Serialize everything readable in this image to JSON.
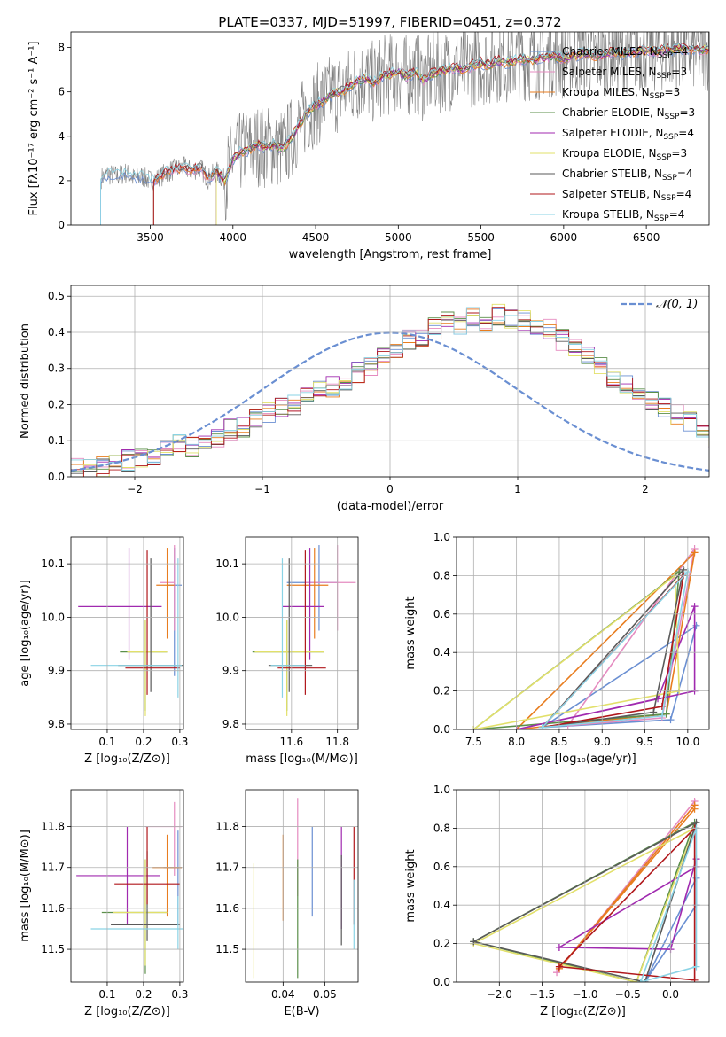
{
  "figure": {
    "title": "PLATE=0337, MJD=51997, FIBERID=0451, z=0.372"
  },
  "colors": {
    "series": [
      "#6a8fd2",
      "#e58bc0",
      "#e87d1f",
      "#5b8f4a",
      "#a02aaf",
      "#e2e06a",
      "#5a5a5a",
      "#b0171b",
      "#8ad3e5"
    ],
    "data": "#808080",
    "normal": "#6a8fd2",
    "grid": "#b0b0b0"
  },
  "series_names": [
    "Chabrier MILES, N_SSP=4",
    "Salpeter MILES, N_SSP=3",
    "Kroupa MILES, N_SSP=3",
    "Chabrier ELODIE, N_SSP=3",
    "Salpeter ELODIE, N_SSP=4",
    "Kroupa ELODIE, N_SSP=3",
    "Chabrier STELIB, N_SSP=4",
    "Salpeter STELIB, N_SSP=4",
    "Kroupa STELIB, N_SSP=4"
  ],
  "chart_data": [
    {
      "id": "spectrum",
      "type": "line",
      "title": "PLATE=0337, MJD=51997, FIBERID=0451, z=0.372",
      "xlabel": "wavelength [Angstrom, rest frame]",
      "ylabel": "Flux [f_λ 10^-17 erg cm^-2 s^-1 A^-1]",
      "xlim": [
        3020,
        6880
      ],
      "ylim": [
        0,
        8.7
      ],
      "xticks": [
        3500,
        4000,
        4500,
        5000,
        5500,
        6000,
        6500
      ],
      "yticks": [
        0,
        2,
        4,
        6,
        8
      ],
      "legend": "upper right",
      "x": [
        3200,
        3240,
        3300,
        3350,
        3400,
        3450,
        3500,
        3550,
        3600,
        3650,
        3700,
        3750,
        3800,
        3850,
        3900,
        3950,
        4000,
        4050,
        4100,
        4150,
        4200,
        4250,
        4300,
        4350,
        4400,
        4450,
        4500,
        4550,
        4600,
        4650,
        4700,
        4750,
        4800,
        4850,
        4900,
        4950,
        5000,
        5050,
        5100,
        5150,
        5200,
        5250,
        5300,
        5350,
        5400,
        5450,
        5500,
        5550,
        5600,
        5650,
        5700,
        5750,
        5800,
        5850,
        5900,
        5950,
        6000,
        6050,
        6100,
        6150,
        6200,
        6250,
        6300,
        6350,
        6400,
        6450,
        6500,
        6550,
        6600,
        6650,
        6700,
        6750
      ],
      "series": [
        {
          "name": "Chabrier MILES, N_SSP=4",
          "start": 3200,
          "values": [
            2.1,
            2.3,
            2.2,
            2.35,
            2.1,
            2.2,
            2.0,
            2.1,
            2.4,
            2.5,
            2.6,
            2.45,
            2.6,
            2.1,
            2.4,
            2.0,
            3.0,
            3.3,
            3.4,
            3.6,
            3.5,
            3.6,
            3.4,
            3.9,
            4.5,
            5.1,
            5.4,
            5.6,
            5.9,
            6.0,
            6.2,
            6.5,
            6.6,
            6.4,
            6.7,
            6.8,
            6.9,
            6.7,
            6.9,
            6.5,
            6.8,
            6.9,
            7.0,
            7.1,
            7.0,
            7.2,
            7.3,
            7.2,
            7.4,
            7.3,
            7.4,
            7.5,
            7.4,
            7.5,
            7.6,
            7.6,
            7.5,
            7.6,
            7.7,
            7.7,
            7.6,
            7.7,
            7.8,
            7.7,
            7.8,
            7.8,
            7.9,
            7.8,
            7.9,
            7.9,
            8.0,
            7.9
          ]
        },
        {
          "name": "Salpeter MILES, N_SSP=3",
          "start": 3520
        },
        {
          "name": "Kroupa MILES, N_SSP=3",
          "start": 3520
        },
        {
          "name": "Chabrier ELODIE, N_SSP=3",
          "start": 3900
        },
        {
          "name": "Salpeter ELODIE, N_SSP=4",
          "start": 3900
        },
        {
          "name": "Kroupa ELODIE, N_SSP=3",
          "start": 3900
        },
        {
          "name": "Chabrier STELIB, N_SSP=4",
          "start": 3520
        },
        {
          "name": "Salpeter STELIB, N_SSP=4",
          "start": 3520
        },
        {
          "name": "Kroupa STELIB, N_SSP=4",
          "start": 3200
        }
      ]
    },
    {
      "id": "residuals",
      "type": "histogram",
      "xlabel": "(data-model)/error",
      "ylabel": "Normed distribution",
      "xlim": [
        -2.5,
        2.5
      ],
      "ylim": [
        0,
        0.53
      ],
      "xticks": [
        -2,
        -1,
        0,
        1,
        2
      ],
      "xtick_labels": [
        "−2",
        "−1",
        "0",
        "1",
        "2"
      ],
      "yticks": [
        0.0,
        0.1,
        0.2,
        0.3,
        0.4,
        0.5
      ],
      "ytick_labels": [
        "0.0",
        "0.1",
        "0.2",
        "0.3",
        "0.4",
        "0.5"
      ],
      "bin_edges_start": -2.5,
      "bin_width": 0.1,
      "values": [
        0.025,
        0.025,
        0.03,
        0.04,
        0.045,
        0.05,
        0.06,
        0.075,
        0.09,
        0.085,
        0.09,
        0.11,
        0.13,
        0.14,
        0.16,
        0.18,
        0.19,
        0.2,
        0.22,
        0.24,
        0.25,
        0.27,
        0.29,
        0.31,
        0.33,
        0.36,
        0.38,
        0.39,
        0.41,
        0.43,
        0.42,
        0.44,
        0.43,
        0.45,
        0.44,
        0.43,
        0.42,
        0.41,
        0.38,
        0.36,
        0.33,
        0.3,
        0.27,
        0.25,
        0.23,
        0.21,
        0.19,
        0.17,
        0.15,
        0.13,
        0.11,
        0.095,
        0.08,
        0.07,
        0.06,
        0.05,
        0.045,
        0.04,
        0.035,
        0.03
      ],
      "normal_label": "𝒩(0, 1)",
      "legend": "upper right"
    },
    {
      "id": "age_vs_Z",
      "type": "scatter",
      "xlabel": "Z [log10(Z/Z⊙)]",
      "ylabel": "age [log10(age/yr)]",
      "xlim": [
        0.0,
        0.31
      ],
      "ylim": [
        9.79,
        10.15
      ],
      "xticks": [
        0.1,
        0.2,
        0.3
      ],
      "yticks": [
        9.8,
        9.9,
        10.0,
        10.1
      ],
      "points": [
        {
          "x": 0.285,
          "y": 10.06,
          "xerr": [
            0.02,
            0.02
          ],
          "yerr": [
            0.17,
            0.07
          ]
        },
        {
          "x": 0.285,
          "y": 10.065,
          "xerr": [
            0.04,
            0.0
          ],
          "yerr": [
            0.09,
            0.07
          ]
        },
        {
          "x": 0.265,
          "y": 10.06,
          "xerr": [
            0.03,
            0.02
          ],
          "yerr": [
            0.1,
            0.07
          ]
        },
        {
          "x": 0.205,
          "y": 9.935,
          "xerr": [
            0.07,
            0.06
          ],
          "yerr": [
            0.11,
            0.06
          ]
        },
        {
          "x": 0.16,
          "y": 10.02,
          "xerr": [
            0.14,
            0.09
          ],
          "yerr": [
            0.1,
            0.11
          ]
        },
        {
          "x": 0.205,
          "y": 9.935,
          "xerr": [
            0.05,
            0.06
          ],
          "yerr": [
            0.12,
            0.06
          ]
        },
        {
          "x": 0.22,
          "y": 9.91,
          "xerr": [
            0.09,
            0.09
          ],
          "yerr": [
            0.05,
            0.2
          ]
        },
        {
          "x": 0.21,
          "y": 9.905,
          "xerr": [
            0.06,
            0.09
          ],
          "yerr": [
            0.05,
            0.22
          ]
        },
        {
          "x": 0.295,
          "y": 9.91,
          "xerr": [
            0.24,
            0.01
          ],
          "yerr": [
            0.06,
            0.2
          ]
        }
      ]
    },
    {
      "id": "age_vs_mass",
      "type": "scatter",
      "xlabel": "mass [log10(M/M⊙)]",
      "ylabel": "",
      "xlim": [
        11.4,
        11.89
      ],
      "ylim": [
        9.79,
        10.15
      ],
      "xticks": [
        11.6,
        11.8
      ],
      "yticks": [
        9.8,
        9.9,
        10.0,
        10.1
      ],
      "points": [
        {
          "x": 11.72,
          "y": 10.065,
          "xerr": [
            0.14,
            0.08
          ],
          "yerr": [
            0.09,
            0.07
          ]
        },
        {
          "x": 11.8,
          "y": 10.065,
          "xerr": [
            0.14,
            0.08
          ],
          "yerr": [
            0.09,
            0.07
          ]
        },
        {
          "x": 11.7,
          "y": 10.06,
          "xerr": [
            0.12,
            0.06
          ],
          "yerr": [
            0.1,
            0.07
          ]
        },
        {
          "x": 11.58,
          "y": 9.935,
          "xerr": [
            0.15,
            0.16
          ],
          "yerr": [
            0.11,
            0.06
          ]
        },
        {
          "x": 11.68,
          "y": 10.02,
          "xerr": [
            0.12,
            0.06
          ],
          "yerr": [
            0.1,
            0.11
          ]
        },
        {
          "x": 11.58,
          "y": 9.935,
          "xerr": [
            0.14,
            0.16
          ],
          "yerr": [
            0.12,
            0.06
          ]
        },
        {
          "x": 11.59,
          "y": 9.91,
          "xerr": [
            0.09,
            0.1
          ],
          "yerr": [
            0.05,
            0.2
          ]
        },
        {
          "x": 11.66,
          "y": 9.905,
          "xerr": [
            0.12,
            0.09
          ],
          "yerr": [
            0.05,
            0.22
          ]
        },
        {
          "x": 11.56,
          "y": 9.91,
          "xerr": [
            0.05,
            0.1
          ],
          "yerr": [
            0.06,
            0.2
          ]
        }
      ]
    },
    {
      "id": "weight_vs_age",
      "type": "line",
      "xlabel": "age [log10(age/yr)]",
      "ylabel": "mass weight",
      "xlim": [
        7.3,
        10.25
      ],
      "ylim": [
        0,
        1.0
      ],
      "xticks": [
        7.5,
        8.0,
        8.5,
        9.0,
        9.5,
        10.0
      ],
      "yticks": [
        0.0,
        0.2,
        0.4,
        0.6,
        0.8,
        1.0
      ],
      "lines": [
        {
          "x": [
            8.3,
            9.8,
            10.1,
            8.3
          ],
          "y": [
            0.01,
            0.05,
            0.54,
            0.01
          ]
        },
        {
          "x": [
            8.6,
            9.7,
            10.08,
            8.6
          ],
          "y": [
            0.02,
            0.06,
            0.94,
            0.02
          ]
        },
        {
          "x": [
            8.0,
            9.75,
            10.08,
            8.0
          ],
          "y": [
            0.0,
            0.08,
            0.92,
            0.0
          ]
        },
        {
          "x": [
            7.5,
            9.9,
            9.75,
            7.5
          ],
          "y": [
            0.0,
            0.82,
            0.08,
            0.0
          ]
        },
        {
          "x": [
            8.0,
            9.65,
            10.08,
            10.08,
            8.0
          ],
          "y": [
            0.0,
            0.16,
            0.64,
            0.2,
            0.0
          ]
        },
        {
          "x": [
            7.5,
            9.85,
            9.9,
            7.5
          ],
          "y": [
            0.0,
            0.8,
            0.2,
            0.0
          ]
        },
        {
          "x": [
            8.3,
            9.6,
            9.95,
            8.3
          ],
          "y": [
            0.01,
            0.09,
            0.83,
            0.01
          ]
        },
        {
          "x": [
            8.3,
            9.7,
            9.95,
            8.3
          ],
          "y": [
            0.01,
            0.12,
            0.8,
            0.01
          ]
        },
        {
          "x": [
            8.3,
            9.7,
            10.0,
            8.3
          ],
          "y": [
            0.01,
            0.07,
            0.82,
            0.01
          ]
        }
      ]
    },
    {
      "id": "mass_vs_Z",
      "type": "scatter",
      "xlabel": "Z [log10(Z/Z⊙)]",
      "ylabel": "mass [log10(M/M⊙)]",
      "xlim": [
        0.0,
        0.31
      ],
      "ylim": [
        11.42,
        11.89
      ],
      "xticks": [
        0.1,
        0.2,
        0.3
      ],
      "yticks": [
        11.5,
        11.6,
        11.7,
        11.8
      ],
      "points": [
        {
          "x": 0.295,
          "y": 11.7,
          "xerr": [
            0.04,
            0.01
          ],
          "yerr": [
            0.14,
            0.09
          ]
        },
        {
          "x": 0.285,
          "y": 11.8,
          "xerr": [
            0.08,
            0.02
          ],
          "yerr": [
            0.12,
            0.06
          ]
        },
        {
          "x": 0.265,
          "y": 11.7,
          "xerr": [
            0.04,
            0.04
          ],
          "yerr": [
            0.12,
            0.08
          ]
        },
        {
          "x": 0.205,
          "y": 11.59,
          "xerr": [
            0.12,
            0.06
          ],
          "yerr": [
            0.15,
            0.13
          ]
        },
        {
          "x": 0.155,
          "y": 11.68,
          "xerr": [
            0.14,
            0.09
          ],
          "yerr": [
            0.12,
            0.12
          ]
        },
        {
          "x": 0.205,
          "y": 11.59,
          "xerr": [
            0.09,
            0.06
          ],
          "yerr": [
            0.13,
            0.13
          ]
        },
        {
          "x": 0.21,
          "y": 11.56,
          "xerr": [
            0.1,
            0.09
          ],
          "yerr": [
            0.04,
            0.18
          ]
        },
        {
          "x": 0.21,
          "y": 11.66,
          "xerr": [
            0.09,
            0.09
          ],
          "yerr": [
            0.05,
            0.14
          ]
        },
        {
          "x": 0.295,
          "y": 11.55,
          "xerr": [
            0.24,
            0.02
          ],
          "yerr": [
            0.05,
            0.08
          ]
        }
      ]
    },
    {
      "id": "mass_vs_EBV",
      "type": "scatter",
      "xlabel": "E(B-V)",
      "ylabel": "",
      "xlim": [
        0.031,
        0.058
      ],
      "ylim": [
        11.42,
        11.89
      ],
      "xticks": [
        0.04,
        0.05
      ],
      "yticks": [
        11.5,
        11.6,
        11.7,
        11.8
      ],
      "points": [
        {
          "x": 0.047,
          "y": 11.7,
          "yerr": [
            0.12,
            0.1
          ]
        },
        {
          "x": 0.0435,
          "y": 11.8,
          "yerr": [
            0.17,
            0.07
          ]
        },
        {
          "x": 0.04,
          "y": 11.7,
          "yerr": [
            0.13,
            0.08
          ]
        },
        {
          "x": 0.0435,
          "y": 11.57,
          "yerr": [
            0.14,
            0.15
          ]
        },
        {
          "x": 0.054,
          "y": 11.68,
          "yerr": [
            0.13,
            0.12
          ]
        },
        {
          "x": 0.033,
          "y": 11.57,
          "yerr": [
            0.14,
            0.14
          ]
        },
        {
          "x": 0.054,
          "y": 11.56,
          "yerr": [
            0.05,
            0.17
          ]
        },
        {
          "x": 0.057,
          "y": 11.7,
          "yerr": [
            0.14,
            0.1
          ]
        },
        {
          "x": 0.057,
          "y": 11.55,
          "yerr": [
            0.05,
            0.12
          ]
        }
      ]
    },
    {
      "id": "weight_vs_Z",
      "type": "line",
      "xlabel": "Z [log10(Z/Z⊙)]",
      "ylabel": "mass weight",
      "xlim": [
        -2.5,
        0.45
      ],
      "ylim": [
        0,
        1.0
      ],
      "xticks": [
        -2.0,
        -1.5,
        -1.0,
        -0.5,
        0.0
      ],
      "xtick_labels": [
        "−2.0",
        "−1.5",
        "−1.0",
        "−0.5",
        "0.0"
      ],
      "yticks": [
        0.0,
        0.2,
        0.4,
        0.6,
        0.8,
        1.0
      ],
      "lines": [
        {
          "x": [
            -0.3,
            0.3,
            0.3,
            -0.3
          ],
          "y": [
            0.0,
            0.4,
            0.54,
            0.0
          ]
        },
        {
          "x": [
            -1.33,
            0.28,
            0.28,
            -1.33
          ],
          "y": [
            0.05,
            0.94,
            0.92,
            0.05
          ]
        },
        {
          "x": [
            -1.3,
            0.28,
            0.28,
            -1.3
          ],
          "y": [
            0.07,
            0.92,
            0.9,
            0.07
          ]
        },
        {
          "x": [
            -2.3,
            -0.4,
            0.28,
            -2.3
          ],
          "y": [
            0.21,
            0.0,
            0.83,
            0.21
          ]
        },
        {
          "x": [
            -1.3,
            0.0,
            0.3,
            0.3,
            -1.3
          ],
          "y": [
            0.18,
            0.17,
            0.64,
            0.6,
            0.18
          ]
        },
        {
          "x": [
            -2.3,
            -0.4,
            0.28,
            -2.3
          ],
          "y": [
            0.2,
            0.0,
            0.8,
            0.2
          ]
        },
        {
          "x": [
            -2.3,
            -0.3,
            0.3,
            -2.3
          ],
          "y": [
            0.21,
            0.0,
            0.83,
            0.21
          ]
        },
        {
          "x": [
            -1.3,
            0.28,
            0.28,
            -1.3
          ],
          "y": [
            0.08,
            0.8,
            0.01,
            0.08
          ]
        },
        {
          "x": [
            -0.35,
            0.3,
            0.3,
            -0.35
          ],
          "y": [
            0.0,
            0.8,
            0.08,
            0.0
          ]
        }
      ]
    }
  ]
}
